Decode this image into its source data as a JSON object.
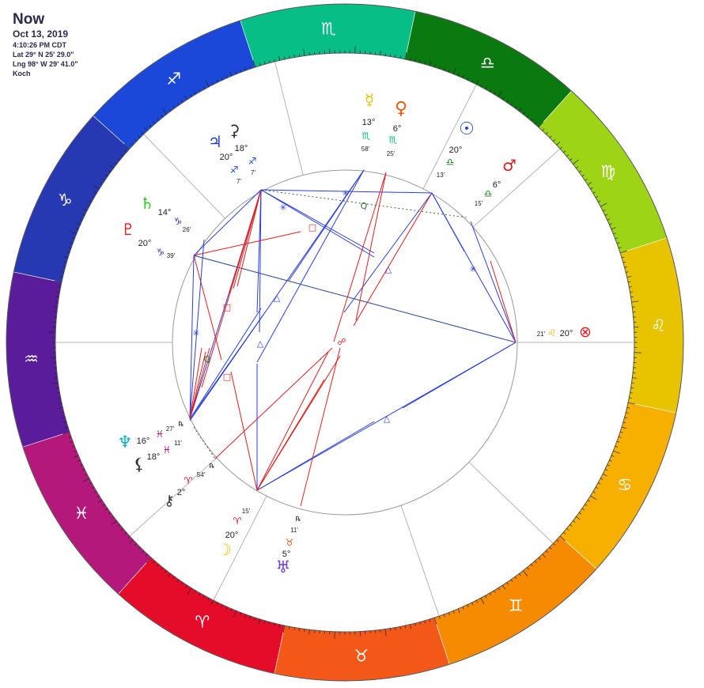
{
  "header": {
    "title": "Now",
    "date": "Oct 13, 2019",
    "time": "4:10:26 PM CDT",
    "lat": "Lat 29° N 25' 29.0\"",
    "lng": "Lng 98° W 29' 41.0\"",
    "house_system": "Koch"
  },
  "zodiac": [
    {
      "name": "leo",
      "glyph": "♌",
      "color": "#e8c400"
    },
    {
      "name": "virgo",
      "glyph": "♍",
      "color": "#9ed416"
    },
    {
      "name": "libra",
      "glyph": "♎",
      "color": "#0a7a10"
    },
    {
      "name": "scorpio",
      "glyph": "♏",
      "color": "#06be86"
    },
    {
      "name": "sagittarius",
      "glyph": "♐",
      "color": "#1c48da"
    },
    {
      "name": "capricorn",
      "glyph": "♑",
      "color": "#2638b2"
    },
    {
      "name": "aquarius",
      "glyph": "♒",
      "color": "#5a1c9a"
    },
    {
      "name": "pisces",
      "glyph": "♓",
      "color": "#b4187a"
    },
    {
      "name": "aries",
      "glyph": "♈",
      "color": "#e40c28"
    },
    {
      "name": "taurus",
      "glyph": "♉",
      "color": "#f45818"
    },
    {
      "name": "gemini",
      "glyph": "♊",
      "color": "#f68a00"
    },
    {
      "name": "cancer",
      "glyph": "♋",
      "color": "#f8b000"
    }
  ],
  "planets": [
    {
      "name": "sun",
      "glyph": "☉",
      "color": "#1a3cd8",
      "deg": "20°",
      "sign": "♎",
      "sign_color": "#0a7a10",
      "min": "13'"
    },
    {
      "name": "mars",
      "glyph": "♂",
      "color": "#e02020",
      "deg": "6°",
      "sign": "♎",
      "sign_color": "#0a7a10",
      "min": "15'"
    },
    {
      "name": "venus",
      "glyph": "♀",
      "color": "#f25a0a",
      "deg": "6°",
      "sign": "♏",
      "sign_color": "#06be86",
      "min": "25'"
    },
    {
      "name": "mercury",
      "glyph": "☿",
      "color": "#e8c400",
      "deg": "13°",
      "sign": "♏",
      "sign_color": "#06be86",
      "min": "58'"
    },
    {
      "name": "ceres",
      "glyph": "⚳",
      "color": "#333333",
      "deg": "18°",
      "sign": "♐",
      "sign_color": "#1c48da",
      "min": "7'"
    },
    {
      "name": "jupiter",
      "glyph": "♃",
      "color": "#1a3cd8",
      "deg": "20°",
      "sign": "♐",
      "sign_color": "#1c48da",
      "min": "7'"
    },
    {
      "name": "saturn",
      "glyph": "♄",
      "color": "#2acc22",
      "deg": "14°",
      "sign": "♑",
      "sign_color": "#2638b2",
      "min": "26'"
    },
    {
      "name": "pluto",
      "glyph": "♇",
      "color": "#e02020",
      "deg": "20°",
      "sign": "♑",
      "sign_color": "#2638b2",
      "min": "39'"
    },
    {
      "name": "neptune",
      "glyph": "♆",
      "color": "#0eb0c8",
      "deg": "16°",
      "sign": "♓",
      "sign_color": "#b4187a",
      "min": "27'",
      "retro": "℞"
    },
    {
      "name": "lilith",
      "glyph": "⚸",
      "color": "#333333",
      "deg": "18°",
      "sign": "♓",
      "sign_color": "#b4187a",
      "min": "11'"
    },
    {
      "name": "chiron",
      "glyph": "⚷",
      "color": "#333333",
      "deg": "2°",
      "sign": "♈",
      "sign_color": "#e40c28",
      "min": "54'",
      "retro": "℞"
    },
    {
      "name": "moon",
      "glyph": "☽",
      "color": "#e8c400",
      "deg": "20°",
      "sign": "♈",
      "sign_color": "#e40c28",
      "min": "15'"
    },
    {
      "name": "uranus",
      "glyph": "♅",
      "color": "#6b3fd8",
      "deg": "5°",
      "sign": "♉",
      "sign_color": "#f45818",
      "min": "11'",
      "retro": "℞"
    }
  ],
  "angles": {
    "ascendant_label_min": "21'",
    "ascendant_sign": "♌",
    "ascendant_deg": "20°",
    "part_of_fortune_glyph": "⊗",
    "part_of_fortune_color": "#e02020"
  },
  "aspect_symbols": {
    "trine": "△",
    "square": "□",
    "sextile": "✳",
    "quintile": "Q",
    "opposition": "☍"
  }
}
